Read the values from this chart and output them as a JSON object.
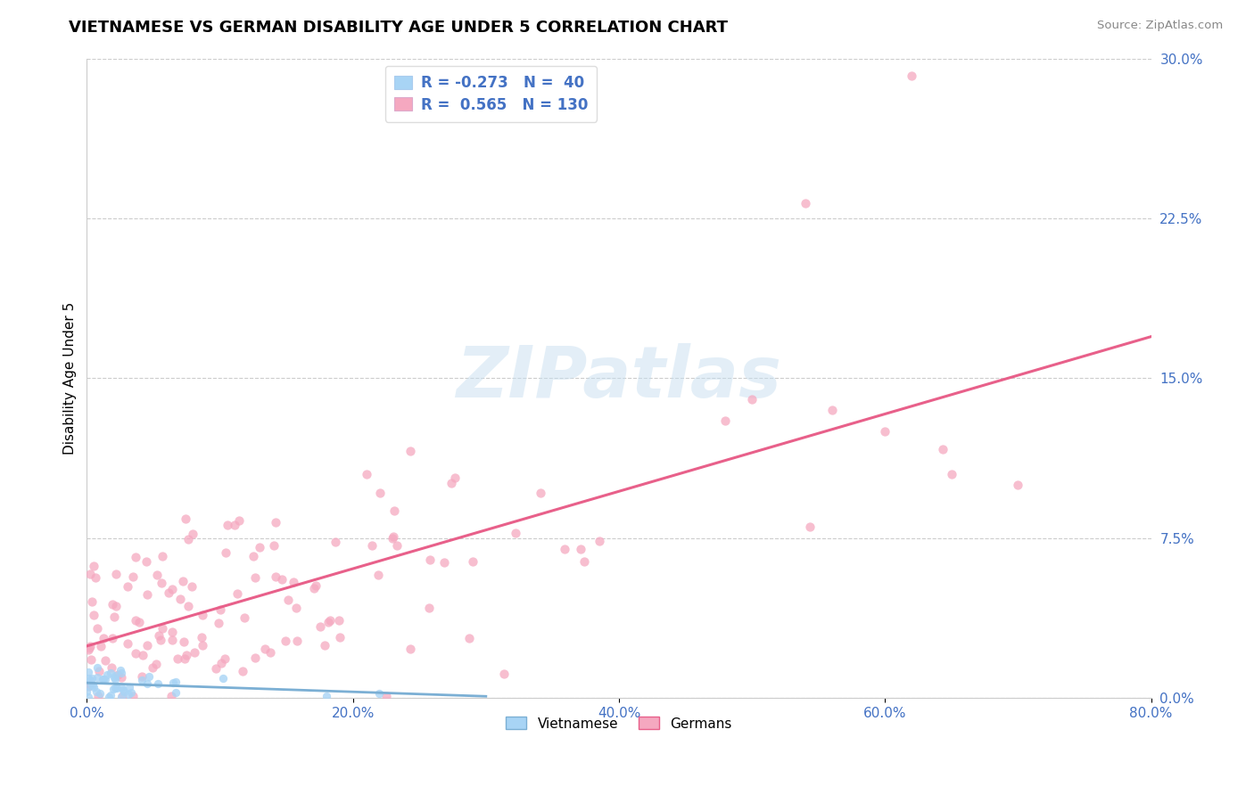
{
  "title": "VIETNAMESE VS GERMAN DISABILITY AGE UNDER 5 CORRELATION CHART",
  "source": "Source: ZipAtlas.com",
  "ylabel": "Disability Age Under 5",
  "xlim": [
    0.0,
    0.8
  ],
  "ylim": [
    0.0,
    0.3
  ],
  "xticks": [
    0.0,
    0.2,
    0.4,
    0.6,
    0.8
  ],
  "yticks": [
    0.0,
    0.075,
    0.15,
    0.225,
    0.3
  ],
  "ytick_labels": [
    "0.0%",
    "7.5%",
    "15.0%",
    "22.5%",
    "30.0%"
  ],
  "xtick_labels": [
    "0.0%",
    "20.0%",
    "40.0%",
    "60.0%",
    "80.0%"
  ],
  "r_vietnamese": -0.273,
  "n_vietnamese": 40,
  "r_german": 0.565,
  "n_german": 130,
  "color_vietnamese": "#a8d4f5",
  "color_vietnamese_line": "#7bafd4",
  "color_german": "#f5a8c0",
  "color_german_line": "#e8608a",
  "background_color": "#ffffff",
  "grid_color": "#cccccc",
  "legend_label_vietnamese": "Vietnamese",
  "legend_label_german": "Germans",
  "title_fontsize": 13,
  "tick_label_color": "#4472c4"
}
